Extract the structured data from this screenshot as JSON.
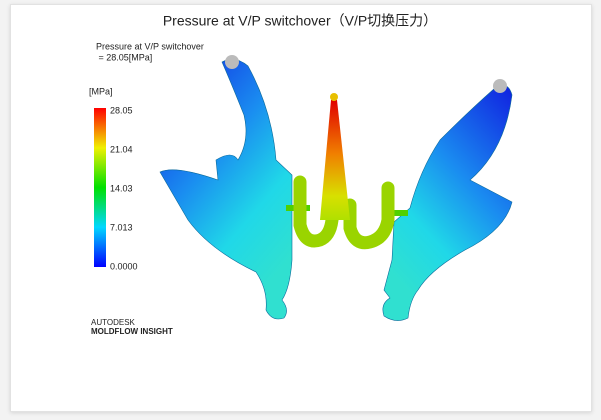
{
  "title": "Pressure at V/P switchover（V/P切换压力）",
  "annotation": {
    "line1": "Pressure at V/P switchover",
    "line2": " = 28.05[MPa]"
  },
  "legend": {
    "unit": "[MPa]",
    "ticks": [
      "28.05",
      "21.04",
      "14.03",
      "7.013",
      "0.0000"
    ]
  },
  "branding": {
    "line1": "AUTODESK",
    "line2": "MOLDFLOW INSIGHT"
  }
}
